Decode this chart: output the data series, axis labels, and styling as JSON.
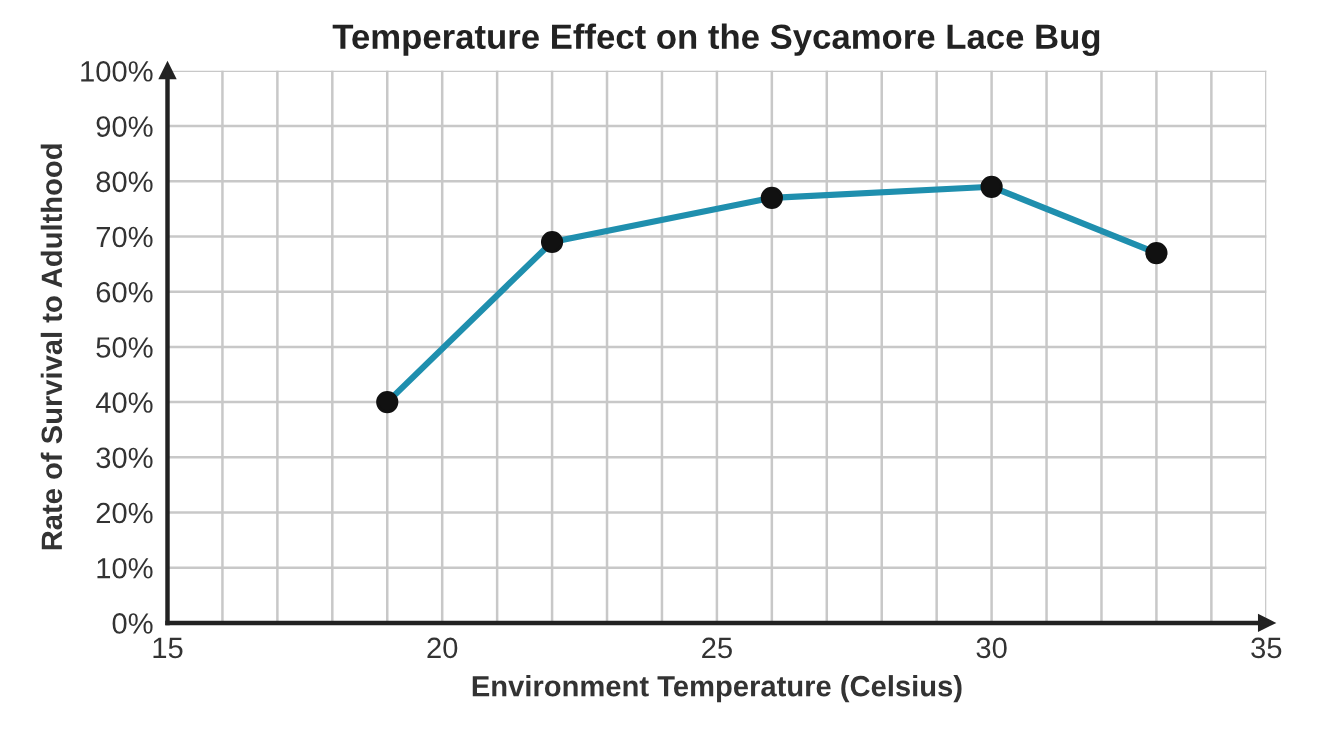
{
  "chart_data": {
    "type": "line",
    "title": "Temperature Effect on the Sycamore Lace Bug",
    "xlabel": "Environment Temperature (Celsius)",
    "ylabel": "Rate of Survival to Adulthood",
    "x": [
      19,
      22,
      26,
      30,
      33
    ],
    "series": [
      {
        "color": "#1f8fae",
        "values": [
          40,
          69,
          77,
          79,
          67
        ]
      }
    ],
    "marker": "circle",
    "line_style": "solid",
    "grid": true,
    "xlim": [
      15,
      35
    ],
    "xticks": [
      15,
      {
        "value": 16,
        "label": null
      },
      {
        "value": 17,
        "label": null
      },
      {
        "value": 18,
        "label": null
      },
      {
        "value": 19,
        "label": null
      },
      20,
      {
        "value": 21,
        "label": null
      },
      {
        "value": 22,
        "label": null
      },
      {
        "value": 23,
        "label": null
      },
      {
        "value": 24,
        "label": null
      },
      25,
      {
        "value": 26,
        "label": null
      },
      {
        "value": 27,
        "label": null
      },
      {
        "value": 28,
        "label": null
      },
      {
        "value": 29,
        "label": null
      },
      30,
      {
        "value": 31,
        "label": null
      },
      {
        "value": 32,
        "label": null
      },
      {
        "value": 33,
        "label": null
      },
      {
        "value": 34,
        "label": null
      },
      35
    ],
    "ylim": [
      0,
      100
    ],
    "yticks": [
      {
        "value": 0,
        "label": "0%"
      },
      {
        "value": 10,
        "label": "10%"
      },
      {
        "value": 20,
        "label": "20%"
      },
      {
        "value": 30,
        "label": "30%"
      },
      {
        "value": 40,
        "label": "40%"
      },
      {
        "value": 50,
        "label": "50%"
      },
      {
        "value": 60,
        "label": "60%"
      },
      {
        "value": 70,
        "label": "70%"
      },
      {
        "value": 80,
        "label": "80%"
      },
      {
        "value": 90,
        "label": "90%"
      },
      {
        "value": 100,
        "label": "100%"
      }
    ]
  }
}
